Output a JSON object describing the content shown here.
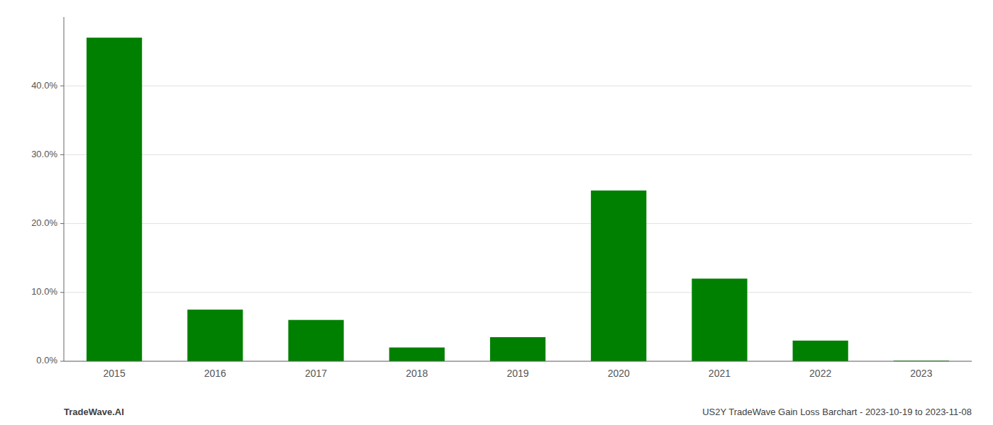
{
  "chart_data": {
    "type": "bar",
    "categories": [
      "2015",
      "2016",
      "2017",
      "2018",
      "2019",
      "2020",
      "2021",
      "2022",
      "2023"
    ],
    "values": [
      0.47,
      0.075,
      0.06,
      0.02,
      0.035,
      0.248,
      0.12,
      0.03,
      0.001
    ],
    "color": "#008000",
    "ylim": [
      0,
      0.5
    ],
    "yticks": [
      {
        "value": 0.0,
        "label": "0.0%"
      },
      {
        "value": 0.1,
        "label": "10.0%"
      },
      {
        "value": 0.2,
        "label": "20.0%"
      },
      {
        "value": 0.3,
        "label": "30.0%"
      },
      {
        "value": 0.4,
        "label": "40.0%"
      }
    ],
    "grid": true,
    "annotations": [
      "TradeWave.AI",
      "US2Y TradeWave Gain Loss Barchart - 2023-10-19 to 2023-11-08"
    ]
  }
}
